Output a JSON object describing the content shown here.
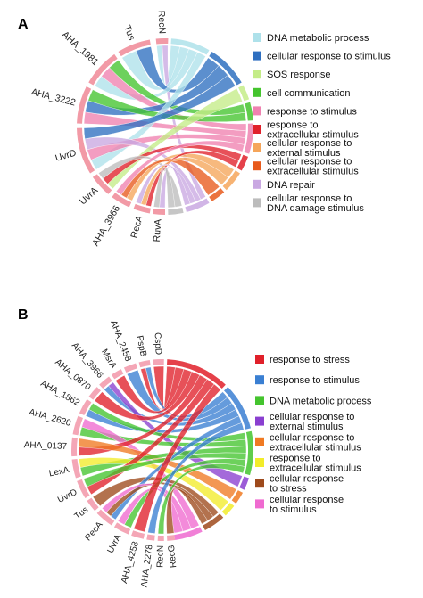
{
  "chart_data": [
    {
      "type": "chord",
      "panel": "A",
      "genes": [
        {
          "name": "RecN",
          "a0": -96,
          "a1": -88
        },
        {
          "name": "Tus",
          "a0": -122,
          "a1": -100
        },
        {
          "name": "AHA_1981",
          "a0": -150,
          "a1": -125
        },
        {
          "name": "AHA_3222",
          "a0": -178,
          "a1": -153
        },
        {
          "name": "UvrD",
          "a0": -212,
          "a1": -181
        },
        {
          "name": "UvrA",
          "a0": -230,
          "a1": -215
        },
        {
          "name": "AHA_3966",
          "a0": -246,
          "a1": -233
        },
        {
          "name": "RecA",
          "a0": -260,
          "a1": -249
        },
        {
          "name": "RuvA",
          "a0": -270,
          "a1": -262
        }
      ],
      "categories": [
        {
          "name": "DNA metabolic process",
          "color": "#aee1ea",
          "a0": -86,
          "a1": -60
        },
        {
          "name": "cellular response to stimulus",
          "color": "#2e6fc0",
          "a0": -58,
          "a1": -30
        },
        {
          "name": "SOS response",
          "color": "#c4ec88",
          "a0": -28,
          "a1": -18
        },
        {
          "name": "cell communication",
          "color": "#44c42e",
          "a0": -16,
          "a1": -4
        },
        {
          "name": "response to stimulus",
          "color": "#ef82b0",
          "a0": -2,
          "a1": 18
        },
        {
          "name": "response to extracellular stimulus",
          "color": "#e0202a",
          "a0": 20,
          "a1": 30
        },
        {
          "name": "cellular response to external stimulus",
          "color": "#f5a55a",
          "a0": 32,
          "a1": 46
        },
        {
          "name": "cellular response to extracellular stimulus",
          "color": "#e85a1c",
          "a0": 48,
          "a1": 58
        },
        {
          "name": "DNA repair",
          "color": "#c9a8e2",
          "a0": 60,
          "a1": 76
        },
        {
          "name": "cellular response to DNA damage stimulus",
          "color": "#bcbcbc",
          "a0": 78,
          "a1": 88
        }
      ],
      "links": [
        {
          "gene": "RecN",
          "category": "DNA metabolic process"
        },
        {
          "gene": "RecN",
          "category": "DNA repair"
        },
        {
          "gene": "Tus",
          "category": "DNA metabolic process"
        },
        {
          "gene": "Tus",
          "category": "cellular response to stimulus"
        },
        {
          "gene": "AHA_1981",
          "category": "DNA metabolic process"
        },
        {
          "gene": "AHA_1981",
          "category": "response to stimulus"
        },
        {
          "gene": "AHA_1981",
          "category": "cell communication"
        },
        {
          "gene": "AHA_3222",
          "category": "response to stimulus"
        },
        {
          "gene": "AHA_3222",
          "category": "cellular response to stimulus"
        },
        {
          "gene": "AHA_3222",
          "category": "cell communication"
        },
        {
          "gene": "UvrD",
          "category": "DNA metabolic process"
        },
        {
          "gene": "UvrD",
          "category": "response to stimulus"
        },
        {
          "gene": "UvrD",
          "category": "DNA repair"
        },
        {
          "gene": "UvrD",
          "category": "cellular response to stimulus"
        },
        {
          "gene": "UvrA",
          "category": "SOS response"
        },
        {
          "gene": "UvrA",
          "category": "response to extracellular stimulus"
        },
        {
          "gene": "UvrA",
          "category": "cellular response to DNA damage stimulus"
        },
        {
          "gene": "AHA_3966",
          "category": "cellular response to external stimulus"
        },
        {
          "gene": "AHA_3966",
          "category": "cellular response to extracellular stimulus"
        },
        {
          "gene": "AHA_3966",
          "category": "response to stimulus"
        },
        {
          "gene": "RecA",
          "category": "response to extracellular stimulus"
        },
        {
          "gene": "RecA",
          "category": "cellular response to external stimulus"
        },
        {
          "gene": "RecA",
          "category": "DNA repair"
        },
        {
          "gene": "RuvA",
          "category": "DNA repair"
        },
        {
          "gene": "RuvA",
          "category": "cellular response to DNA damage stimulus"
        }
      ],
      "legend": [
        "DNA metabolic process",
        "cellular response to stimulus",
        "SOS response",
        "cell communication",
        "response to stimulus",
        "response to\nextracellular stimulus",
        "cellular response to\nexternal stimulus",
        "cellular response to\nextracellular stimulus",
        "DNA repair",
        "cellular response to\nDNA damage stimulus"
      ]
    },
    {
      "type": "chord",
      "panel": "B",
      "genes": [
        {
          "name": "CspD",
          "a0": -96,
          "a1": -89
        },
        {
          "name": "PspB",
          "a0": -105,
          "a1": -98
        },
        {
          "name": "AHA_2458",
          "a0": -115,
          "a1": -107
        },
        {
          "name": "MsrA",
          "a0": -124,
          "a1": -117
        },
        {
          "name": "AHA_3966",
          "a0": -134,
          "a1": -126
        },
        {
          "name": "AHA_0870",
          "a0": -144,
          "a1": -136
        },
        {
          "name": "AHA_1862",
          "a0": -156,
          "a1": -146
        },
        {
          "name": "AHA_2620",
          "a0": -170,
          "a1": -158
        },
        {
          "name": "AHA_0137",
          "a0": -184,
          "a1": -172
        },
        {
          "name": "LexA",
          "a0": -198,
          "a1": -186
        },
        {
          "name": "UvrD",
          "a0": -212,
          "a1": -200
        },
        {
          "name": "Tus",
          "a0": -222,
          "a1": -214
        },
        {
          "name": "RecA",
          "a0": -236,
          "a1": -224
        },
        {
          "name": "UvrA",
          "a0": -248,
          "a1": -238
        },
        {
          "name": "AHA_4258",
          "a0": -258,
          "a1": -250
        },
        {
          "name": "AHA_2278",
          "a0": -265,
          "a1": -260
        },
        {
          "name": "RecN",
          "a0": -271,
          "a1": -267
        },
        {
          "name": "RecG",
          "a0": -278,
          "a1": -273
        }
      ],
      "categories": [
        {
          "name": "response to stress",
          "color": "#e0202a",
          "a0": -87,
          "a1": -46
        },
        {
          "name": "response to stimulus",
          "color": "#3a7fd2",
          "a0": -44,
          "a1": -14
        },
        {
          "name": "DNA metabolic process",
          "color": "#44c42e",
          "a0": -12,
          "a1": 16
        },
        {
          "name": "cellular response to external stimulus",
          "color": "#8a3fd0",
          "a0": 18,
          "a1": 26
        },
        {
          "name": "cellular response to extracellular stimulus",
          "color": "#f07a22",
          "a0": 28,
          "a1": 36
        },
        {
          "name": "response to extracellular stimulus",
          "color": "#f2ec2a",
          "a0": 38,
          "a1": 46
        },
        {
          "name": "cellular response to stress",
          "color": "#9e4a1c",
          "a0": 48,
          "a1": 62
        },
        {
          "name": "cellular response to stimulus",
          "color": "#ef6ad0",
          "a0": 64,
          "a1": 82
        }
      ],
      "links": [
        {
          "gene": "CspD",
          "category": "response to stress"
        },
        {
          "gene": "PspB",
          "category": "response to stress"
        },
        {
          "gene": "PspB",
          "category": "response to stimulus"
        },
        {
          "gene": "AHA_2458",
          "category": "response to stimulus"
        },
        {
          "gene": "MsrA",
          "category": "response to stress"
        },
        {
          "gene": "AHA_3966",
          "category": "response to stimulus"
        },
        {
          "gene": "AHA_3966",
          "category": "cellular response to external stimulus"
        },
        {
          "gene": "AHA_0870",
          "category": "response to stress"
        },
        {
          "gene": "AHA_1862",
          "category": "response to stimulus"
        },
        {
          "gene": "AHA_1862",
          "category": "DNA metabolic process"
        },
        {
          "gene": "AHA_2620",
          "category": "DNA metabolic process"
        },
        {
          "gene": "AHA_2620",
          "category": "cellular response to stimulus"
        },
        {
          "gene": "AHA_0137",
          "category": "response to stress"
        },
        {
          "gene": "AHA_0137",
          "category": "cellular response to extracellular stimulus"
        },
        {
          "gene": "LexA",
          "category": "DNA metabolic process"
        },
        {
          "gene": "LexA",
          "category": "response to extracellular stimulus"
        },
        {
          "gene": "UvrD",
          "category": "response to stress"
        },
        {
          "gene": "UvrD",
          "category": "DNA metabolic process"
        },
        {
          "gene": "Tus",
          "category": "cellular response to stress"
        },
        {
          "gene": "RecA",
          "category": "response to stimulus"
        },
        {
          "gene": "RecA",
          "category": "cellular response to stress"
        },
        {
          "gene": "RecA",
          "category": "cellular response to stimulus"
        },
        {
          "gene": "UvrA",
          "category": "DNA metabolic process"
        },
        {
          "gene": "UvrA",
          "category": "cellular response to stimulus"
        },
        {
          "gene": "AHA_4258",
          "category": "response to stress"
        },
        {
          "gene": "AHA_2278",
          "category": "response to stimulus"
        },
        {
          "gene": "RecN",
          "category": "DNA metabolic process"
        },
        {
          "gene": "RecG",
          "category": "cellular response to stress"
        }
      ],
      "legend": [
        "response to stress",
        "response to stimulus",
        "DNA metabolic process",
        "cellular response to\nexternal stimulus",
        "cellular response to\nextracellular stimulus",
        "response to\nextracellular stimulus",
        "cellular response\nto stress",
        "cellular response\nto stimulus"
      ]
    }
  ]
}
